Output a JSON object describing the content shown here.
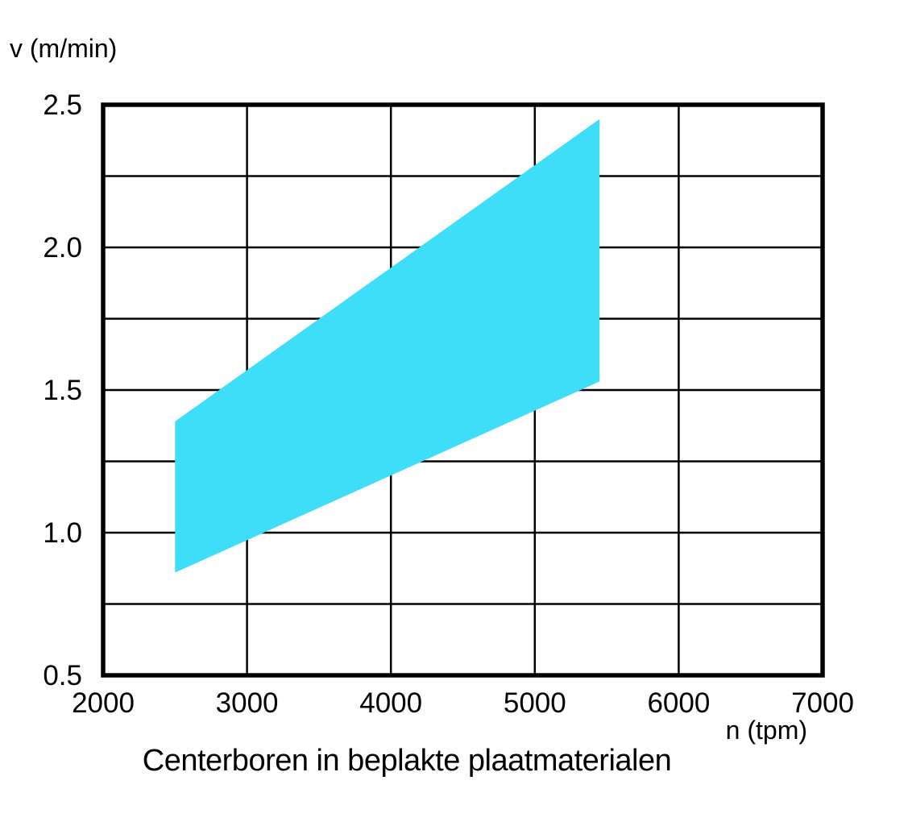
{
  "chart": {
    "title": "Centerboren in beplakte plaatmaterialen",
    "y_axis_label": "v (m/min)",
    "x_axis_label": "n (tpm)"
  },
  "chart_data": {
    "type": "area",
    "title": "Centerboren in beplakte plaatmaterialen",
    "xlabel": "n (tpm)",
    "ylabel": "v (m/min)",
    "xlim": [
      2000,
      7000
    ],
    "ylim": [
      0.5,
      2.5
    ],
    "x_grid_step": 1000,
    "y_grid_step": 0.25,
    "x_ticks": [
      2000,
      3000,
      4000,
      5000,
      6000,
      7000
    ],
    "x_tick_labels": [
      "2000",
      "3000",
      "4000",
      "5000",
      "6000",
      "7000"
    ],
    "y_ticks": [
      2.5,
      2.0,
      1.5,
      1.0,
      0.5
    ],
    "y_tick_labels": [
      "2.5",
      "2.0",
      "1.5",
      "1.0",
      "0.5"
    ],
    "band": {
      "upper": [
        [
          2500,
          1.39
        ],
        [
          5450,
          2.45
        ]
      ],
      "lower": [
        [
          2500,
          0.86
        ],
        [
          5450,
          1.53
        ]
      ]
    },
    "colors": {
      "band_fill": "#3EDDF8",
      "grid": "#000000"
    },
    "grid": true,
    "legend": false
  }
}
